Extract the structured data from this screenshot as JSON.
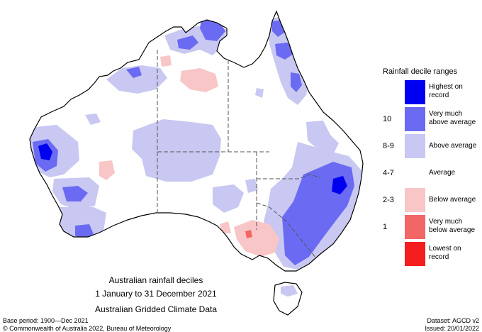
{
  "map": {
    "title": "Australian rainfall deciles",
    "period": "1 January to 31 December 2021",
    "dataset_name": "Australian Gridded Climate Data"
  },
  "legend": {
    "title": "Rainfall decile ranges",
    "items": [
      {
        "decile": "",
        "label": "Highest on record",
        "color": "#0000f0"
      },
      {
        "decile": "10",
        "label": "Very much above average",
        "color": "#6a6af2"
      },
      {
        "decile": "8-9",
        "label": "Above average",
        "color": "#c8c8f2"
      },
      {
        "decile": "4-7",
        "label": "Average",
        "color": "#ffffff"
      },
      {
        "decile": "2-3",
        "label": "Below average",
        "color": "#f8c6c6"
      },
      {
        "decile": "1",
        "label": "Very much below average",
        "color": "#f26666"
      },
      {
        "decile": "",
        "label": "Lowest on record",
        "color": "#f51e1e"
      }
    ]
  },
  "footer": {
    "base_period": "Base period: 1900—Dec 2021",
    "dataset": "Dataset: AGCD v2",
    "copyright": "© Commonwealth of Australia 2022, Bureau of Meteorology",
    "issued": "Issued: 20/01/2022"
  }
}
